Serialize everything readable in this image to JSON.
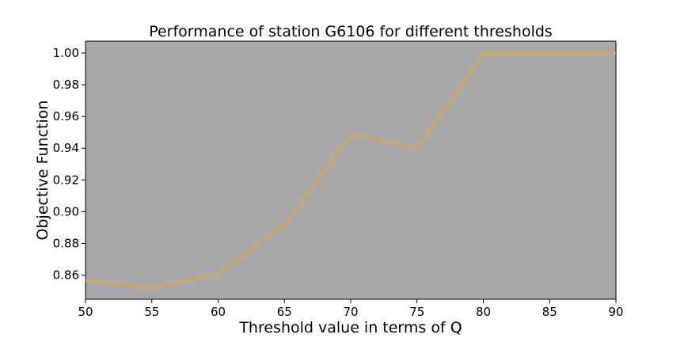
{
  "chart_data": {
    "type": "line",
    "title": "Performance of station G6106 for different thresholds",
    "xlabel": "Threshold value in terms of Q",
    "ylabel": "Objective Function",
    "x": [
      50,
      55,
      60,
      65,
      70,
      75,
      80,
      85,
      90
    ],
    "series": [
      {
        "values": [
          0.857,
          0.852,
          0.861,
          0.892,
          0.949,
          0.94,
          1.0,
          1.0,
          1.0
        ]
      }
    ],
    "xlim": [
      50,
      90
    ],
    "ylim": [
      0.8448,
      1.0075
    ],
    "xticks": [
      50,
      55,
      60,
      65,
      70,
      75,
      80,
      85,
      90
    ],
    "yticks": [
      "0.86",
      "0.88",
      "0.90",
      "0.92",
      "0.94",
      "0.96",
      "0.98",
      "1.00"
    ],
    "grid": false,
    "background_color": "#a9a9a9",
    "line_color": "#e8a33a"
  }
}
